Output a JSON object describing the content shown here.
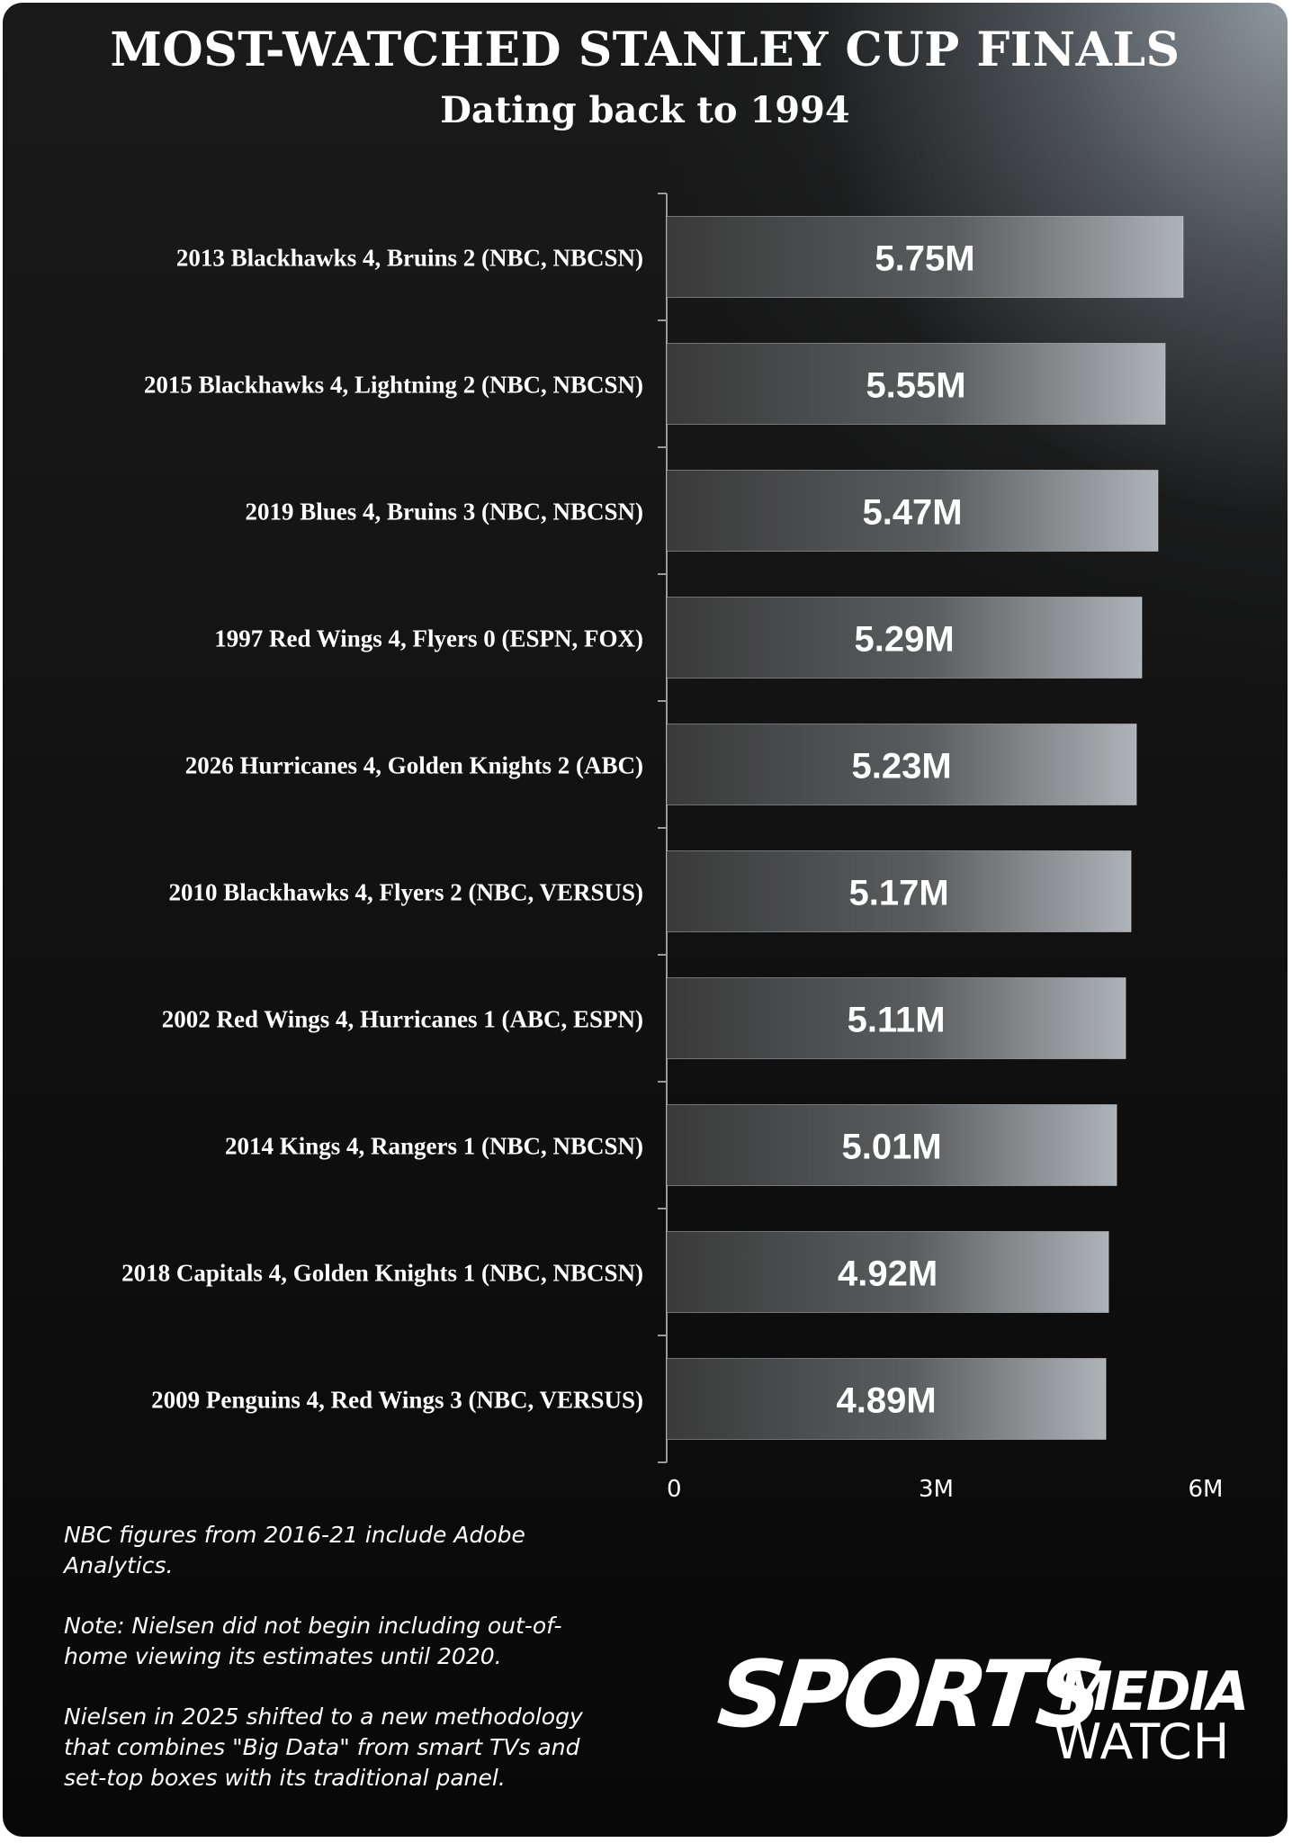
{
  "chart_data": {
    "type": "bar",
    "orientation": "horizontal",
    "title": "MOST-WATCHED STANLEY CUP FINALS",
    "subtitle": "Dating back to 1994",
    "categories": [
      "2013 Blackhawks 4, Bruins 2 (NBC, NBCSN)",
      "2015 Blackhawks 4, Lightning 2 (NBC, NBCSN)",
      "2019 Blues 4, Bruins 3 (NBC, NBCSN)",
      "1997 Red Wings 4, Flyers 0 (ESPN, FOX)",
      "2026 Hurricanes 4, Golden Knights 2 (ABC)",
      "2010 Blackhawks 4, Flyers 2 (NBC, VERSUS)",
      "2002 Red Wings 4, Hurricanes 1 (ABC, ESPN)",
      "2014 Kings 4, Rangers 1 (NBC, NBCSN)",
      "2018 Capitals 4, Golden Knights 1 (NBC, NBCSN)",
      "2009 Penguins 4, Red Wings 3 (NBC, VERSUS)"
    ],
    "values": [
      5.75,
      5.55,
      5.47,
      5.29,
      5.23,
      5.17,
      5.11,
      5.01,
      4.92,
      4.89
    ],
    "value_labels": [
      "5.75M",
      "5.55M",
      "5.47M",
      "5.29M",
      "5.23M",
      "5.17M",
      "5.11M",
      "5.01M",
      "4.92M",
      "4.89M"
    ],
    "xlim": [
      0,
      6
    ],
    "xticks": [
      0,
      3,
      6
    ],
    "xtick_labels": [
      "0",
      "3M",
      "6M"
    ],
    "xlabel": "",
    "ylabel": "",
    "grid": false,
    "legend": "none",
    "colors": {
      "background": "#0d0d0d",
      "bar_fill_start": "#3a3a3a",
      "bar_fill_end": "#aeb3b7",
      "text": "#ffffff",
      "axis": "#9a9a9a"
    }
  },
  "notes": [
    "NBC figures from 2016-21 include Adobe Analytics.",
    "Note: Nielsen did not begin including out-of-home viewing its estimates until 2020.",
    "Nielsen in 2025 shifted to a new methodology that combines \"Big Data\" from smart TVs and set-top boxes with its traditional panel."
  ],
  "logo": {
    "main": "SPORTS",
    "media": "MEDIA",
    "watch": "WATCH"
  }
}
